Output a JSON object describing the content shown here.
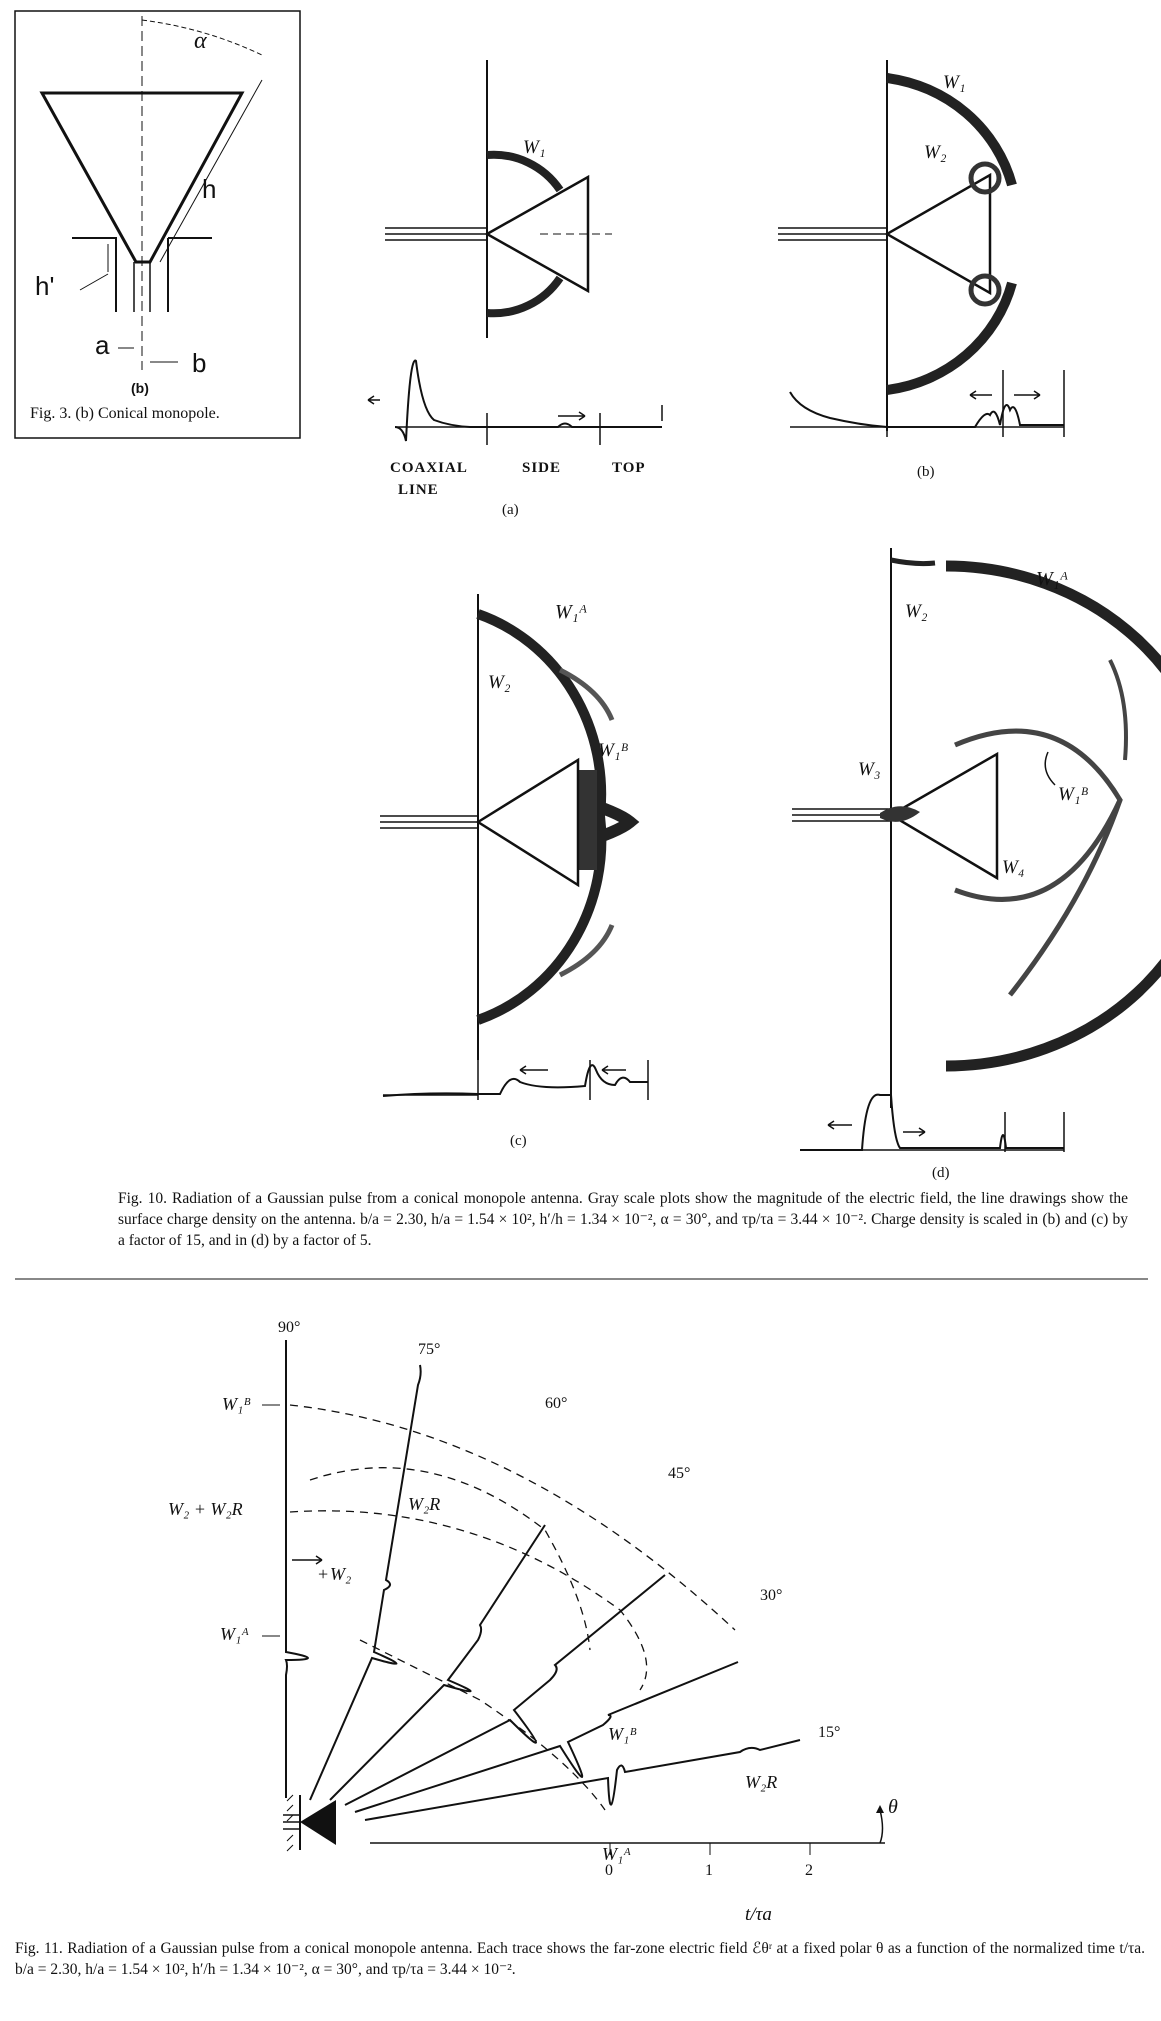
{
  "fig3": {
    "alpha": "α",
    "h": "h",
    "h_prime": "h'",
    "a": "a",
    "b": "b",
    "sublabel": "(b)",
    "caption": "Fig. 3. (b)    Conical monopole."
  },
  "fig10": {
    "panel_a": {
      "label": "(a)",
      "wave": "W₁",
      "coaxial": "COAXIAL",
      "line": "LINE",
      "side": "SIDE",
      "top": "TOP"
    },
    "panel_b": {
      "label": "(b)",
      "w1": "W₁",
      "w2": "W₂"
    },
    "panel_c": {
      "label": "(c)",
      "w1a": "W₁ᴬ",
      "w2": "W₂",
      "w1b": "W₁ᴮ"
    },
    "panel_d": {
      "label": "(d)",
      "w1a": "W₁ᴬ",
      "w2": "W₂",
      "w3": "W₃",
      "w1b": "W₁ᴮ",
      "w4": "W₄"
    },
    "caption": "Fig. 10.   Radiation of a Gaussian pulse from a conical monopole antenna. Gray scale plots show the magnitude of the electric field, the line drawings show the surface charge density on the antenna. b/a = 2.30, h/a = 1.54 × 10², h′/h = 1.34 × 10⁻², α = 30°, and τp/τa = 3.44 × 10⁻². Charge density is scaled in (b) and (c) by a factor of 15, and in (d) by a factor of 5."
  },
  "fig11": {
    "angles": [
      "90°",
      "75°",
      "60°",
      "45°",
      "30°",
      "15°"
    ],
    "labels": {
      "w1b_left": "W₁ᴮ",
      "w2_w2r": "W₂ + W₂R",
      "w1a_left": "W₁ᴬ",
      "w2r_top": "W₂R",
      "w2": "W₂",
      "w1b_bottom": "W₁ᴮ",
      "w1a_bottom": "W₁ᴬ",
      "w2r_right": "W₂R",
      "plus": "+",
      "theta": "θ"
    },
    "axis": {
      "ticks": [
        "0",
        "1",
        "2"
      ],
      "label": "t/τa"
    },
    "caption": "Fig. 11.   Radiation of a Gaussian pulse from a conical monopole antenna. Each trace shows the far-zone electric field ℰθʳ at a fixed polar θ as a function of the normalized time t/τa. b/a = 2.30, h/a = 1.54 × 10², h′/h = 1.34 × 10⁻², α = 30°, and τp/τa = 3.44 × 10⁻²."
  }
}
